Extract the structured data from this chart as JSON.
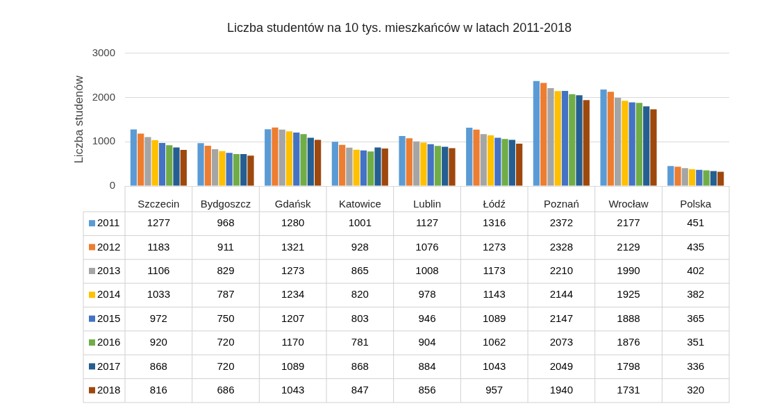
{
  "chart_data": {
    "type": "bar",
    "title": "Liczba studentów na 10 tys. mieszkańców w latach 2011-2018",
    "ylabel": "Liczba studenów",
    "categories": [
      "Szczecin",
      "Bydgoszcz",
      "Gdańsk",
      "Katowice",
      "Lublin",
      "Łódź",
      "Poznań",
      "Wrocław",
      "Polska"
    ],
    "series": [
      {
        "name": "2011",
        "color": "#5b9bd5",
        "values": [
          1277,
          968,
          1280,
          1001,
          1127,
          1316,
          2372,
          2177,
          451
        ]
      },
      {
        "name": "2012",
        "color": "#ed7d31",
        "values": [
          1183,
          911,
          1321,
          928,
          1076,
          1273,
          2328,
          2129,
          435
        ]
      },
      {
        "name": "2013",
        "color": "#a5a5a5",
        "values": [
          1106,
          829,
          1273,
          865,
          1008,
          1173,
          2210,
          1990,
          402
        ]
      },
      {
        "name": "2014",
        "color": "#ffc000",
        "values": [
          1033,
          787,
          1234,
          820,
          978,
          1143,
          2144,
          1925,
          382
        ]
      },
      {
        "name": "2015",
        "color": "#4472c4",
        "values": [
          972,
          750,
          1207,
          803,
          946,
          1089,
          2147,
          1888,
          365
        ]
      },
      {
        "name": "2016",
        "color": "#70ad47",
        "values": [
          920,
          720,
          1170,
          781,
          904,
          1062,
          2073,
          1876,
          351
        ]
      },
      {
        "name": "2017",
        "color": "#255e91",
        "values": [
          868,
          720,
          1089,
          868,
          884,
          1043,
          2049,
          1798,
          336
        ]
      },
      {
        "name": "2018",
        "color": "#9e480e",
        "values": [
          816,
          686,
          1043,
          847,
          856,
          957,
          1940,
          1731,
          320
        ]
      }
    ],
    "ylim": [
      0,
      3000
    ],
    "yticks": [
      0,
      1000,
      2000,
      3000
    ],
    "grid": "y",
    "legend": "bottom",
    "data_labels": true
  }
}
